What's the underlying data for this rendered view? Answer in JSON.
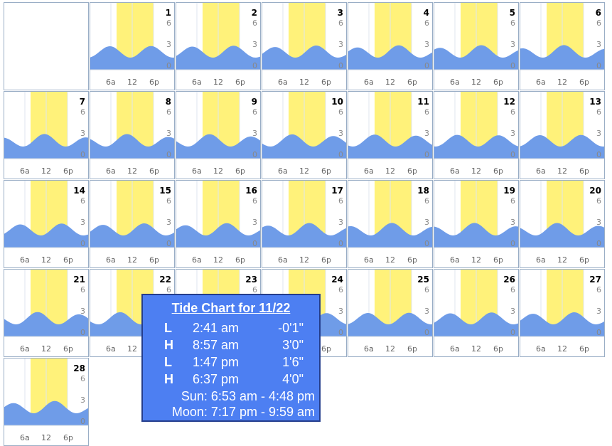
{
  "calendar": {
    "x_labels": [
      "6a",
      "12",
      "6p"
    ],
    "y_labels": [
      "6",
      "3",
      "0"
    ],
    "days": [
      "1",
      "2",
      "3",
      "4",
      "5",
      "6",
      "7",
      "8",
      "9",
      "10",
      "11",
      "12",
      "13",
      "14",
      "15",
      "16",
      "17",
      "18",
      "19",
      "20",
      "21",
      "22",
      "23",
      "24",
      "25",
      "26",
      "27",
      "28"
    ],
    "leading_blank_days": 1
  },
  "colors": {
    "daylight": "#fff27a",
    "water": "#6f9ce8",
    "water_dark": "#5a86c8",
    "border": "#9aaec6"
  },
  "popup": {
    "title": "Tide Chart for 11/22",
    "tides": [
      {
        "type": "L",
        "time": "2:41 am",
        "height": "-0'1\""
      },
      {
        "type": "H",
        "time": "8:57 am",
        "height": "3'0\""
      },
      {
        "type": "L",
        "time": "1:47 pm",
        "height": "1'6\""
      },
      {
        "type": "H",
        "time": "6:37 pm",
        "height": "4'0\""
      }
    ],
    "sun": "Sun:  6:53 am  -  4:48 pm",
    "moon": "Moon:  7:17 pm  -  9:59 am"
  }
}
